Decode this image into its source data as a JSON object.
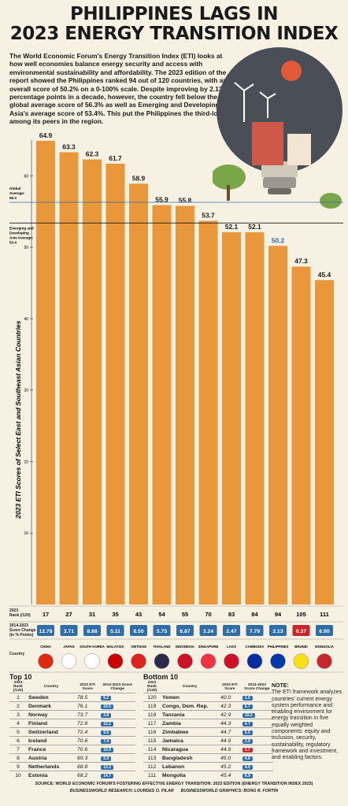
{
  "title_line1": "PHILIPPINES LAGS IN",
  "title_line2": "2023 ENERGY TRANSITION INDEX",
  "intro": "The World Economic Forum's Energy Transition Index (ETI) looks at how well economies balance energy security and access with environmental sustainability and affordability. The 2023 edition of the report showed the Philippines ranked 94 out of 120 countries, with an overall score of 50.2% on a 0-100% scale. Despite improving by 2.13 percentage points in a decade, however, the country fell below the global average score of 56.3% as well as Emerging and Developing Asia's average score of 53.4%. This put the Philippines the third-lowest among its peers in the region.",
  "chart_data": {
    "type": "bar",
    "ylabel": "2023 ETI Scores of Select East and Southeast Asian Countries",
    "ylim": [
      0,
      65
    ],
    "ytick_values": [
      10,
      20,
      30,
      40,
      50,
      60
    ],
    "categories": [
      "CHINA",
      "JAPAN",
      "SOUTH KOREA",
      "MALAYSIA",
      "VIETNAM",
      "THAILAND",
      "INDONESIA",
      "SINGAPORE",
      "LAOS",
      "CAMBODIA",
      "PHILIPPINES",
      "BRUNEI",
      "MONGOLIA"
    ],
    "values": [
      64.9,
      63.3,
      62.3,
      61.7,
      58.9,
      55.9,
      55.8,
      53.7,
      52.1,
      52.1,
      50.2,
      47.3,
      45.4
    ],
    "value_labels": [
      "64.9",
      "63.3",
      "62.3",
      "61.7",
      "58.9",
      "55.9",
      "55.8",
      "53.7",
      "52.1",
      "52.1",
      "50.2",
      "47.3",
      "45.4"
    ],
    "ranks": [
      "17",
      "27",
      "31",
      "35",
      "43",
      "54",
      "55",
      "70",
      "83",
      "84",
      "94",
      "105",
      "111"
    ],
    "score_change": [
      "12.78",
      "3.71",
      "8.88",
      "5.11",
      "6.50",
      "5.75",
      "6.87",
      "3.24",
      "2.47",
      "7.79",
      "2.13",
      "0.37",
      "6.90"
    ],
    "score_change_direction": [
      "up",
      "up",
      "up",
      "up",
      "up",
      "up",
      "up",
      "up",
      "up",
      "up",
      "up",
      "down",
      "up"
    ],
    "highlight": "PHILIPPINES",
    "reference_lines": [
      {
        "label_1": "Global",
        "label_2": "Average:",
        "label_3": "56.3",
        "value": 56.3
      },
      {
        "label_1": "Emerging and",
        "label_2": "Developing",
        "label_3": "Asia Average:",
        "label_4": "53.4",
        "value": 53.4
      }
    ],
    "colors": {
      "bar": "#e8983a",
      "highlight_text": "#2e6da8",
      "up": "#2e6da8",
      "down": "#c9252c"
    }
  },
  "row_labels": {
    "rank_l1": "2023",
    "rank_l2": "Rank (/120)",
    "change_l1": "2014-2023",
    "change_l2": "Score Change",
    "change_l3": "(in % Points)",
    "country": "Country"
  },
  "top10": {
    "title": "Top 10",
    "headers": [
      "2023 Rank (/120)",
      "Country",
      "2023 ETI Score",
      "2014-2023 Score Change"
    ],
    "rows": [
      [
        "1",
        "Sweden",
        "78.5",
        "6.2"
      ],
      [
        "2",
        "Denmark",
        "76.1",
        "10.5"
      ],
      [
        "3",
        "Norway",
        "73.7",
        "3.8"
      ],
      [
        "4",
        "Finland",
        "72.8",
        "12.2"
      ],
      [
        "5",
        "Switzerland",
        "72.4",
        "9.5"
      ],
      [
        "6",
        "Iceland",
        "70.6",
        "7.4"
      ],
      [
        "7",
        "France",
        "70.6",
        "10.9"
      ],
      [
        "8",
        "Austria",
        "69.3",
        "5.9"
      ],
      [
        "9",
        "Netherlands",
        "68.8",
        "13.3"
      ],
      [
        "10",
        "Estonia",
        "68.2",
        "14.7"
      ]
    ]
  },
  "bottom10": {
    "title": "Bottom 10",
    "headers": [
      "2023 Rank (/120)",
      "Country",
      "2023 ETI Score",
      "2014-2023 Score Change"
    ],
    "rows": [
      [
        "120",
        "Yemen",
        "40.0",
        "1.0",
        "up"
      ],
      [
        "119",
        "Congo, Dem. Rep.",
        "42.3",
        "5.7",
        "up"
      ],
      [
        "118",
        "Tanzania",
        "42.9",
        "10.2",
        "up"
      ],
      [
        "117",
        "Zambia",
        "44.3",
        "4.7",
        "up"
      ],
      [
        "116",
        "Zimbabwe",
        "44.7",
        "5.5",
        "up"
      ],
      [
        "115",
        "Jamaica",
        "44.9",
        "2.9",
        "up"
      ],
      [
        "114",
        "Nicaragua",
        "44.9",
        "2.7",
        "down"
      ],
      [
        "113",
        "Bangladesh",
        "45.0",
        "4.6",
        "up"
      ],
      [
        "112",
        "Lebanon",
        "45.2",
        "4.0",
        "up"
      ],
      [
        "111",
        "Mongolia",
        "45.4",
        "6.9",
        "up"
      ]
    ]
  },
  "note_title": "NOTE:",
  "note": "The ETI framework analyzes countries' current energy system performance and enabling environment for energy transition in five equally weighted components: equity and inclusion, security, sustainability, regulatory framework and investment, and enabling factors.",
  "source": "SOURCE: WORLD ECONOMIC FORUM'S FOSTERING EFFECTIVE ENERGY TRANSITION: 2023 EDITION (ENERGY TRANSITION INDEX 2023)",
  "research": "BUSINESSWORLD RESEARCH: LOURDES O. PILAR",
  "graphics": "BUSINESSWORLD GRAPHICS: BONG R. FORTIN"
}
